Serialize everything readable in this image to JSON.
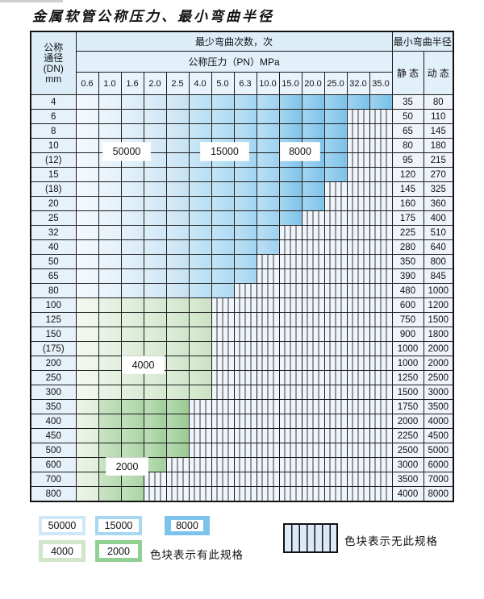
{
  "title": "金属软管公称压力、最小弯曲半径",
  "table": {
    "corner_header": [
      "公称",
      "通径",
      "(DN)",
      "mm"
    ],
    "cycles_header": "最少弯曲次数，次",
    "pressure_header": "公称压力（PN）MPa",
    "radius_header": "最小弯曲半径",
    "static_header": "静 态",
    "dynamic_header": "动 态",
    "pressure_columns": [
      "0.6",
      "1.0",
      "1.6",
      "2.0",
      "2.5",
      "4.0",
      "5.0",
      "6.3",
      "10.0",
      "15.0",
      "20.0",
      "25.0",
      "32.0",
      "35.0"
    ],
    "rows": [
      {
        "dn": "4",
        "group": "blue",
        "max_pn": "35.0",
        "static": "35",
        "dynamic": "80"
      },
      {
        "dn": "6",
        "group": "blue",
        "max_pn": "25.0",
        "static": "50",
        "dynamic": "110"
      },
      {
        "dn": "8",
        "group": "blue",
        "max_pn": "25.0",
        "static": "65",
        "dynamic": "145"
      },
      {
        "dn": "10",
        "group": "blue",
        "max_pn": "25.0",
        "static": "80",
        "dynamic": "180"
      },
      {
        "dn": "(12)",
        "group": "blue",
        "max_pn": "25.0",
        "static": "95",
        "dynamic": "215"
      },
      {
        "dn": "15",
        "group": "blue",
        "max_pn": "25.0",
        "static": "120",
        "dynamic": "270"
      },
      {
        "dn": "(18)",
        "group": "blue",
        "max_pn": "20.0",
        "static": "145",
        "dynamic": "325"
      },
      {
        "dn": "20",
        "group": "blue",
        "max_pn": "20.0",
        "static": "160",
        "dynamic": "360"
      },
      {
        "dn": "25",
        "group": "blue",
        "max_pn": "15.0",
        "static": "175",
        "dynamic": "400"
      },
      {
        "dn": "32",
        "group": "blue",
        "max_pn": "10.0",
        "static": "225",
        "dynamic": "510"
      },
      {
        "dn": "40",
        "group": "blue",
        "max_pn": "10.0",
        "static": "280",
        "dynamic": "640"
      },
      {
        "dn": "50",
        "group": "blue",
        "max_pn": "6.3",
        "static": "350",
        "dynamic": "800"
      },
      {
        "dn": "65",
        "group": "blue",
        "max_pn": "6.3",
        "static": "390",
        "dynamic": "845"
      },
      {
        "dn": "80",
        "group": "blue",
        "max_pn": "5.0",
        "static": "480",
        "dynamic": "1000"
      },
      {
        "dn": "100",
        "group": "green-light",
        "max_pn": "4.0",
        "static": "600",
        "dynamic": "1200"
      },
      {
        "dn": "125",
        "group": "green-light",
        "max_pn": "4.0",
        "static": "750",
        "dynamic": "1500"
      },
      {
        "dn": "150",
        "group": "green-light",
        "max_pn": "4.0",
        "static": "900",
        "dynamic": "1800"
      },
      {
        "dn": "(175)",
        "group": "green-light",
        "max_pn": "4.0",
        "static": "1000",
        "dynamic": "2000"
      },
      {
        "dn": "200",
        "group": "green-light",
        "max_pn": "4.0",
        "static": "1000",
        "dynamic": "2000"
      },
      {
        "dn": "250",
        "group": "green-light",
        "max_pn": "4.0",
        "static": "1250",
        "dynamic": "2500"
      },
      {
        "dn": "300",
        "group": "green-light",
        "max_pn": "4.0",
        "static": "1500",
        "dynamic": "3000"
      },
      {
        "dn": "350",
        "group": "green-dark",
        "max_pn": "2.5",
        "static": "1750",
        "dynamic": "3500"
      },
      {
        "dn": "400",
        "group": "green-dark",
        "max_pn": "2.5",
        "static": "2000",
        "dynamic": "4000"
      },
      {
        "dn": "450",
        "group": "green-dark",
        "max_pn": "2.5",
        "static": "2250",
        "dynamic": "4500"
      },
      {
        "dn": "500",
        "group": "green-dark",
        "max_pn": "2.5",
        "static": "2500",
        "dynamic": "5000"
      },
      {
        "dn": "600",
        "group": "green-dark",
        "max_pn": "2.0",
        "static": "3000",
        "dynamic": "6000"
      },
      {
        "dn": "700",
        "group": "green-dark",
        "max_pn": "1.6",
        "static": "3500",
        "dynamic": "7000"
      },
      {
        "dn": "800",
        "group": "green-dark",
        "max_pn": "1.6",
        "static": "4000",
        "dynamic": "8000"
      }
    ]
  },
  "overlay_labels": [
    {
      "text": "50000",
      "zone": "blue-light"
    },
    {
      "text": "15000",
      "zone": "blue-medium"
    },
    {
      "text": "8000",
      "zone": "blue-dark"
    },
    {
      "text": "4000",
      "zone": "green-light"
    },
    {
      "text": "2000",
      "zone": "green-dark"
    }
  ],
  "legend": {
    "items": [
      {
        "value": "50000",
        "color": "#cfe8f8"
      },
      {
        "value": "15000",
        "color": "#a8d7f2"
      },
      {
        "value": "8000",
        "color": "#7cc3ec"
      },
      {
        "value": "4000",
        "color": "#cfe6cb"
      },
      {
        "value": "2000",
        "color": "#92cf92"
      }
    ],
    "has_spec_text": "色块表示有此规格",
    "no_spec_text": "色块表示无此规格"
  },
  "colors": {
    "blue_zone_a": [
      "#eef6fc",
      "#e4f1fa",
      "#daecf8",
      "#d0e7f6",
      "#c6e2f4"
    ],
    "blue_zone_b": [
      "#b6def4",
      "#acd9f2",
      "#a2d4f0"
    ],
    "blue_zone_c": [
      "#9ed2f0",
      "#80c4ea",
      "#7dc3ea",
      "#7bc2e9",
      "#79c1e9",
      "#77c0e8"
    ],
    "green_light": [
      "#edf5ea",
      "#e2efde",
      "#daebd5",
      "#d4e8ce",
      "#cfe5c9",
      "#cae2c3"
    ],
    "green_dark": [
      "#e3efdd",
      "#b4d9ad",
      "#aad4a3",
      "#a1cf9a",
      "#99cb92"
    ],
    "hatch_bg": "#eff5fa",
    "header_bg": "#e2f0fa",
    "border": "#1c1c1c"
  }
}
